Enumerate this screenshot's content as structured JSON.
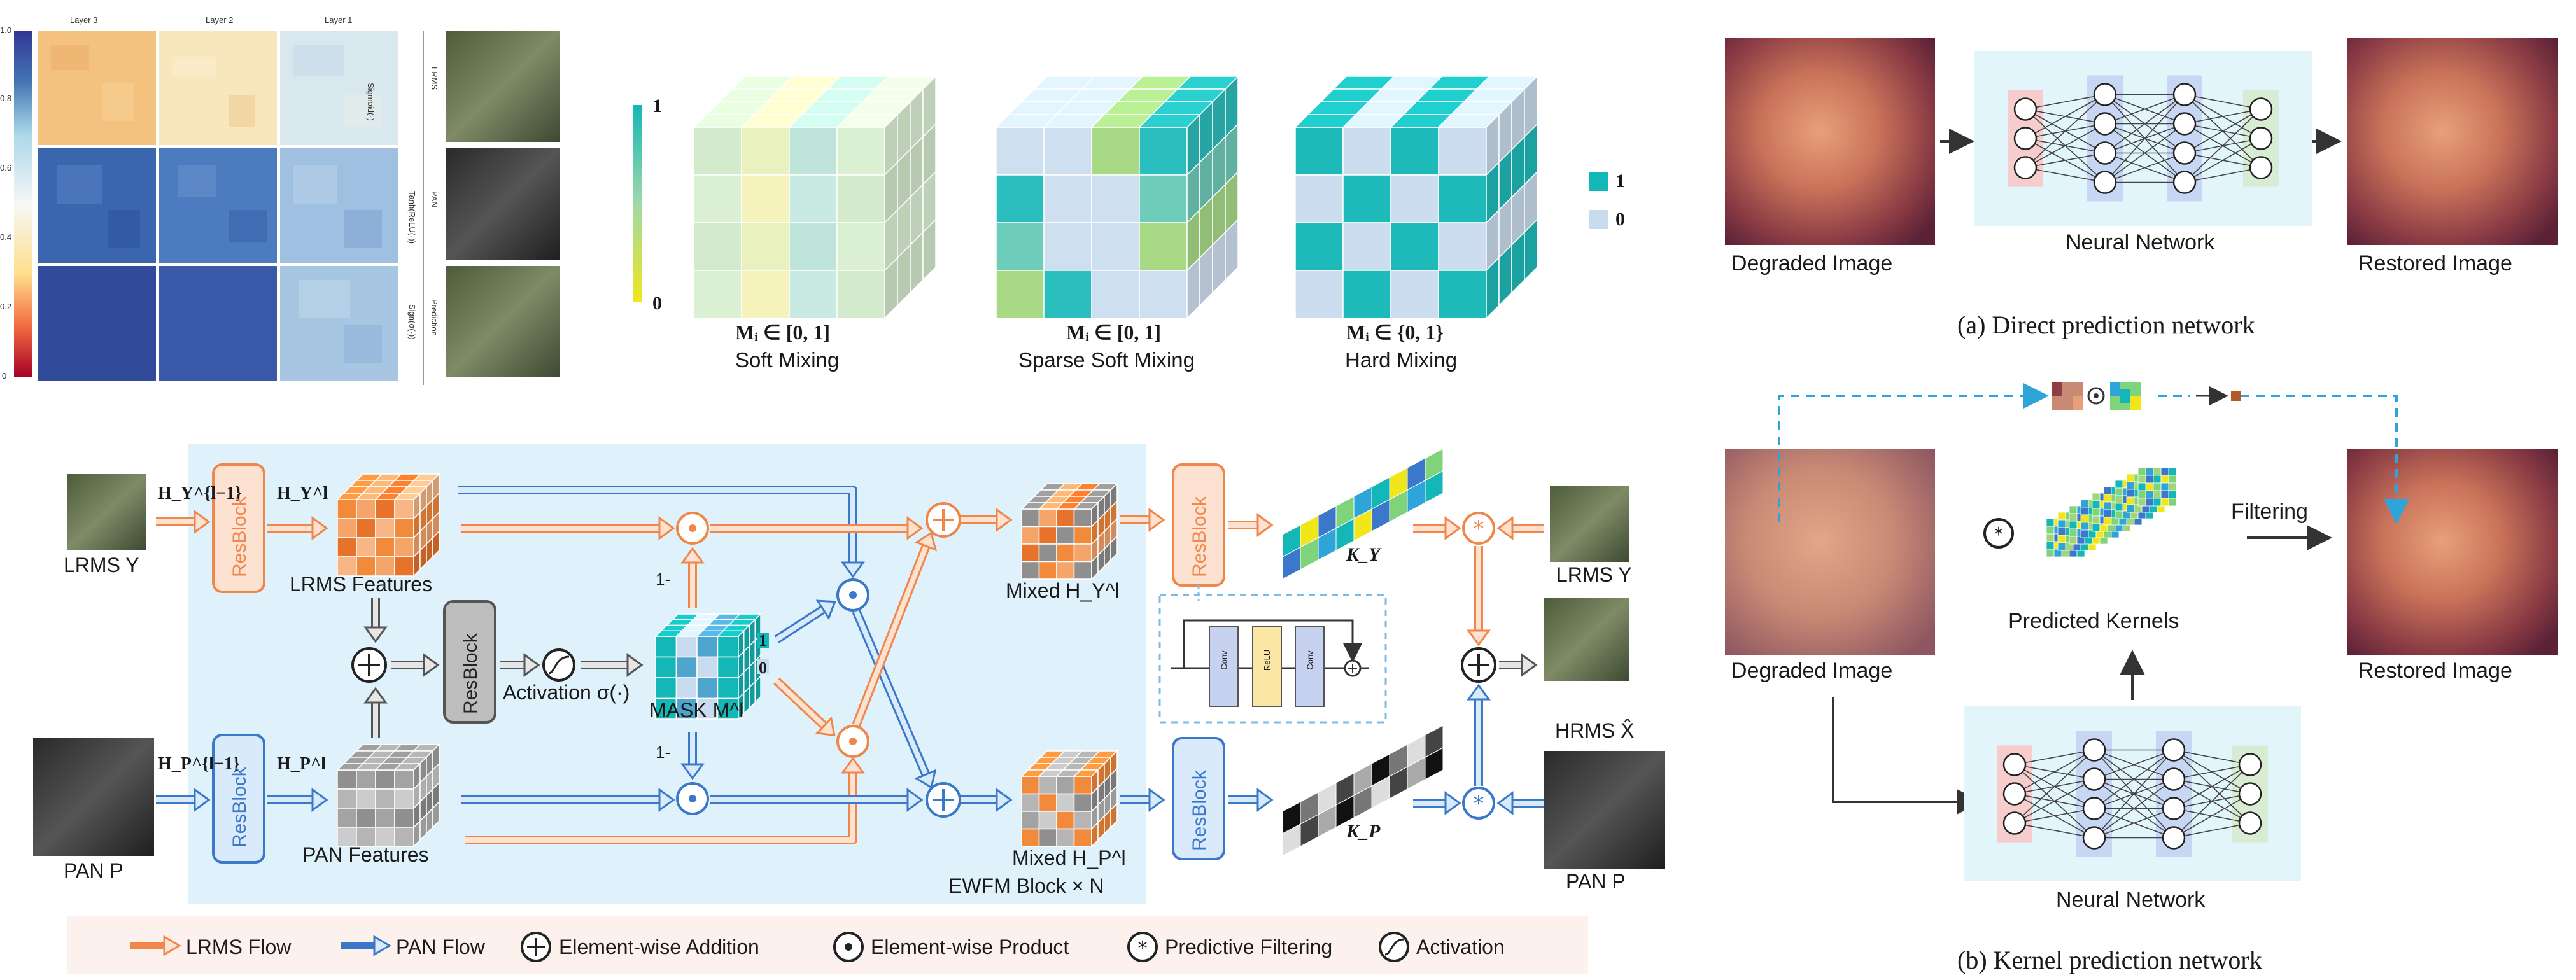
{
  "colors": {
    "lrms_orange": "#f0874a",
    "pan_blue": "#3b78c9",
    "panel_bg": "#dff2fb",
    "legend_bg": "#fdf1ee",
    "resblock_lrms_fill": "#fde2d2",
    "resblock_pan_fill": "#d9ebfb",
    "resblock_gray_fill": "#bdbdbd",
    "cube_teal": "#13b7b7",
    "cube_light": "#c9dcef",
    "nn_input": "#f6cccc",
    "nn_hidden": "#c7d6f3",
    "nn_output": "#d7ecd2",
    "nn_bg": "#e2f5fb"
  },
  "heatmap": {
    "columns": [
      "Layer 3",
      "Layer 2",
      "Layer 1"
    ],
    "rows": [
      "Sigmoid(·)",
      "Tanh(ReLU(·))",
      "Sign(σ(·))"
    ],
    "side_images": [
      "LRMS",
      "PAN",
      "Prediction"
    ],
    "colorbar_ticks": [
      "0",
      "0.2",
      "0.4",
      "0.6",
      "0.8",
      "1.0"
    ]
  },
  "mixing": {
    "colorbar_top": "1",
    "colorbar_bottom": "0",
    "cubes": [
      {
        "formula": "Mᵢ ∈ [0, 1]",
        "name": "Soft Mixing"
      },
      {
        "formula": "Mᵢ ∈ [0, 1]",
        "name": "Sparse Soft Mixing"
      },
      {
        "formula": "Mᵢ ∈ {0, 1}",
        "name": "Hard Mixing"
      }
    ],
    "legend": [
      {
        "label": "1",
        "color": "#13b7b7"
      },
      {
        "label": "0",
        "color": "#c9dcef"
      }
    ]
  },
  "architecture": {
    "lrms_input": "LRMS Y",
    "pan_input": "PAN P",
    "h_y_prev": "H_Y^{l−1}",
    "h_p_prev": "H_P^{l−1}",
    "h_y": "H_Y^l",
    "h_p": "H_P^l",
    "resblock": "ResBlock",
    "lrms_features": "LRMS Features",
    "pan_features": "PAN Features",
    "activation": "Activation σ(·)",
    "mask": "MASK M^l",
    "mask_one": "1",
    "mask_zero": "0",
    "one_minus_top": "1-",
    "one_minus_bottom": "1-",
    "mixed_y": "Mixed H_Y^l",
    "mixed_p": "Mixed H_P^l",
    "ewfm": "EWFM Block × N",
    "k_y": "K_Y",
    "k_p": "K_P",
    "lrms_right": "LRMS Y",
    "pan_right": "PAN P",
    "hrms": "HRMS X̂",
    "inner_blocks": [
      "Conv",
      "ReLU",
      "Conv"
    ]
  },
  "legend": [
    {
      "icon": "orange-arrow-icon",
      "label": "LRMS Flow"
    },
    {
      "icon": "blue-arrow-icon",
      "label": "PAN Flow"
    },
    {
      "icon": "circled-plus-icon",
      "label": "Element-wise Addition"
    },
    {
      "icon": "circled-dot-icon",
      "label": "Element-wise Product"
    },
    {
      "icon": "circled-asterisk-icon",
      "label": "Predictive Filtering"
    },
    {
      "icon": "activation-curve-icon",
      "label": "Activation"
    }
  ],
  "panel_a": {
    "degraded": "Degraded Image",
    "network": "Neural Network",
    "restored": "Restored Image",
    "caption": "(a)  Direct prediction network"
  },
  "panel_b": {
    "degraded": "Degraded Image",
    "network": "Neural Network",
    "kernels": "Predicted Kernels",
    "filtering": "Filtering",
    "restored": "Restored Image",
    "caption": "(b)  Kernel prediction network"
  }
}
